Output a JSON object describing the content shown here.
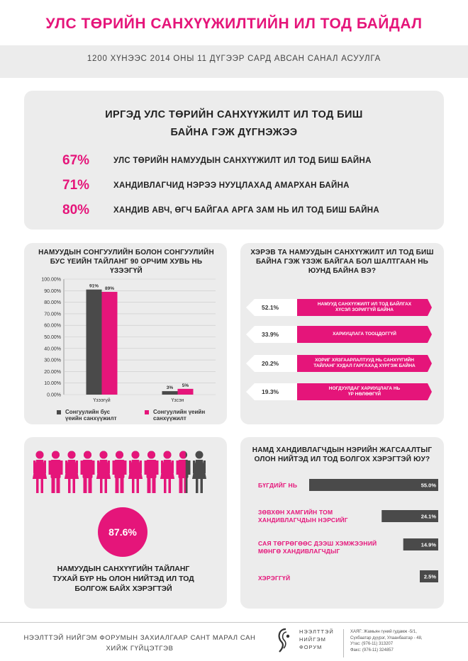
{
  "title": "УЛС ТӨРИЙН САНХҮҮЖИЛТИЙН ИЛ ТОД БАЙДАЛ",
  "subtitle": "1200 ХҮНЭЭС 2014 ОНЫ 11 ДҮГЭЭР САРД АВСАН САНАЛ АСУУЛГА",
  "section1": {
    "question_line1": "ИРГЭД УЛС ТӨРИЙН САНХҮҮЖИЛТ ИЛ ТОД БИШ",
    "question_line2": "БАЙНА ГЭЖ ДҮГНЭЖЭЭ",
    "stats": [
      {
        "pct": "67%",
        "text": "УЛС ТӨРИЙН НАМУУДЫН САНХҮҮЖИЛТ ИЛ ТОД БИШ БАЙНА"
      },
      {
        "pct": "71%",
        "text": "ХАНДИВЛАГЧИД НЭРЭЭ НУУЦЛАХАД АМАРХАН БАЙНА"
      },
      {
        "pct": "80%",
        "text": "ХАНДИВ АВЧ, ӨГЧ БАЙГАА АРГА ЗАМ НЬ ИЛ ТОД БИШ БАЙНА"
      }
    ]
  },
  "colors": {
    "accent": "#e5157a",
    "dark": "#4a4a4a",
    "panel": "#ececec"
  },
  "chart_data": [
    {
      "type": "bar",
      "title": "НАМУУДЫН СОНГУУЛИЙН БОЛОН СОНГУУЛИЙН БУС ҮЕИЙН ТАЙЛАНГ 90 ОРЧИМ ХУВЬ НЬ ҮЗЭЭГҮЙ",
      "title_lines": [
        "НАМУУДЫН СОНГУУЛИЙН БОЛОН СОНГУУЛИЙН",
        "БУС ҮЕИЙН ТАЙЛАНГ 90 ОРЧИМ ХУВЬ НЬ",
        "ҮЗЭЭГҮЙ"
      ],
      "categories": [
        "Үзээгүй",
        "Үзсэн"
      ],
      "series": [
        {
          "name": "Сонгуулийн бус үеийн санхүүжилт",
          "name_lines": [
            "Сонгуулийн бус",
            "үеийн санхүүжилт"
          ],
          "color": "#4a4a4a",
          "values": [
            91,
            3
          ],
          "labels": [
            "91%",
            "3%"
          ]
        },
        {
          "name": "Сонгуулийн үеийн санхүүжилт",
          "name_lines": [
            "Сонгуулийн үеийн",
            "санхүүжилт"
          ],
          "color": "#e5157a",
          "values": [
            89,
            5
          ],
          "labels": [
            "89%",
            "5%"
          ]
        }
      ],
      "ylim": [
        0,
        100
      ],
      "yticks": [
        "0.00%",
        "10.00%",
        "20.00%",
        "30.00%",
        "40.00%",
        "50.00%",
        "60.00%",
        "70.00%",
        "80.00%",
        "90.00%",
        "100.00%"
      ],
      "grid": true,
      "legend": "bottom"
    },
    {
      "type": "bar",
      "orientation": "horizontal-pills",
      "title": "ХЭРЭВ ТА НАМУУДЫН САНХҮҮЖИЛТ ИЛ ТОД БИШ БАЙНА ГЭЖ ҮЗЭЖ БАЙГАА БОЛ ШАЛТГААН НЬ ЮУНД БАЙНА ВЭ?",
      "title_lines": [
        "ХЭРЭВ ТА НАМУУДЫН САНХҮҮЖИЛТ ИЛ ТОД БИШ",
        "БАЙНА ГЭЖ ҮЗЭЖ БАЙГАА БОЛ ШАЛТГААН НЬ",
        "ЮУНД БАЙНА ВЭ?"
      ],
      "items": [
        {
          "value": 52.1,
          "label": "52.1%",
          "text_lines": [
            "НАМУУД САНХҮҮЖИЛТ ИЛ ТОД БАЙЛГАХ",
            "ХҮСЭЛ ЗОРИГГҮЙ БАЙНА"
          ]
        },
        {
          "value": 33.9,
          "label": "33.9%",
          "text_lines": [
            "ХАРИУЦЛАГА ТООЦДОГГҮЙ"
          ]
        },
        {
          "value": 20.2,
          "label": "20.2%",
          "text_lines": [
            "ХОРИГ ХЯЗГААРЛАЛТУУД НЬ САНХҮҮГИЙН",
            "ТАЙЛАНГ ХУДАЛ ГАРГАХАД ХҮРГЭЖ БАЙНА"
          ]
        },
        {
          "value": 19.3,
          "label": "19.3%",
          "text_lines": [
            "НОГДУУЛДАГ ХАРИУЦЛАГА НЬ",
            "ҮР НӨЛӨӨГҮЙ"
          ]
        }
      ]
    },
    {
      "type": "bar",
      "orientation": "horizontal",
      "title": "НАМД ХАНДИВЛАГЧДЫН НЭРИЙН ЖАГСААЛТЫГ ОЛОН НИЙТЭД ИЛ ТОД БОЛГОХ ХЭРЭГТЭЙ ЮУ?",
      "title_lines": [
        "НАМД ХАНДИВЛАГЧДЫН НЭРИЙН ЖАГСААЛТЫГ",
        "ОЛОН НИЙТЭД ИЛ ТОД БОЛГОХ ХЭРЭГТЭЙ ЮУ?"
      ],
      "categories": [
        "БҮГДИЙГ НЬ",
        "ЗӨВХӨН ХАМГИЙН ТОМ ХАНДИВЛАГЧДЫН НЭРСИЙГ",
        "САЯ ТӨГРӨГӨӨС ДЭЭШ ХЭМЖЭЭНИЙ МӨНГӨ ХАНДИВЛАГЧДЫГ",
        "ХЭРЭГГҮЙ"
      ],
      "category_lines": [
        [
          "БҮГДИЙГ НЬ"
        ],
        [
          "ЗӨВХӨН ХАМГИЙН ТОМ",
          "ХАНДИВЛАГЧДЫН НЭРСИЙГ"
        ],
        [
          "САЯ ТӨГРӨГӨӨС ДЭЭШ ХЭМЖЭЭНИЙ",
          "МӨНГӨ ХАНДИВЛАГЧДЫГ"
        ],
        [
          "ХЭРЭГГҮЙ"
        ]
      ],
      "values": [
        55.0,
        24.1,
        14.9,
        2.5
      ],
      "labels": [
        "55.0%",
        "24.1%",
        "14.9%",
        "2.5%"
      ]
    }
  ],
  "people": {
    "count": 11,
    "highlighted_fraction": 0.876,
    "value_label": "87.6%",
    "caption_lines": [
      "НАМУУДЫН САНХҮҮГИЙН ТАЙЛАНГ",
      "ТУХАЙ БҮР НЬ ОЛОН НИЙТЭД ИЛ ТОД",
      "БОЛГОЖ БАЙХ ХЭРЭГТЭЙ"
    ]
  },
  "footer": {
    "text_line1": "НЭЭЛТТЭЙ НИЙГЭМ ФОРУМЫН ЗАХИАЛГААР САНТ МАРАЛ САН",
    "text_line2": "ХИЙЖ ГҮЙЦЭТГЭВ",
    "logo_lines": [
      "НЭЭЛТТЭЙ",
      "НИЙГЭМ",
      "ФОРУМ"
    ],
    "contact_lines": [
      "ХАЯГ: Жамьян гүний гудамж -5/1,",
      "Сүхбаатар дүүрэг, Улаанбаатар - 48,",
      "Утас: (976-11) 313207",
      "Факс: (976-11) 324857"
    ]
  }
}
